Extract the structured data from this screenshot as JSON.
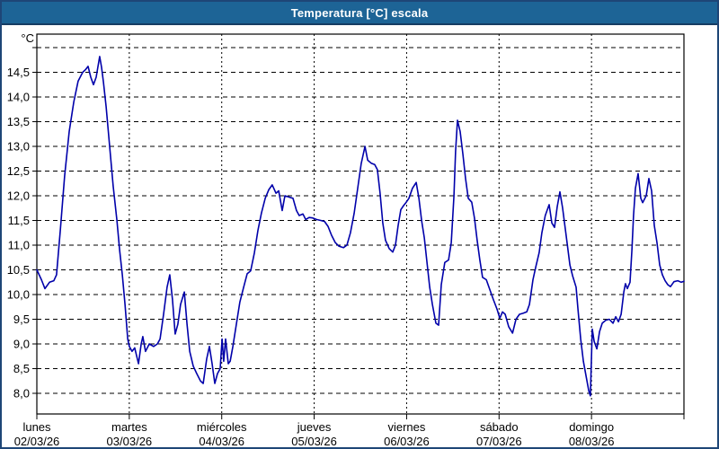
{
  "window": {
    "title": "Temperatura [°C] escala"
  },
  "colors": {
    "titlebar": "#1d6496",
    "frame": "#1e4677",
    "line": "#0000aa",
    "grid": "#000000",
    "plot_background": "#ffffff",
    "label_text": "#000000"
  },
  "chart_data": {
    "type": "line",
    "title": "Temperatura [°C] escala",
    "legend": "none",
    "grid": "dashed",
    "y_axis": {
      "unit_label": "°C",
      "min": 8.0,
      "max": 15.0,
      "step": 0.5,
      "top_gridline_unlabeled": true,
      "tick_labels": [
        "14,5",
        "14,0",
        "13,5",
        "13,0",
        "12,5",
        "12,0",
        "11,5",
        "11,0",
        "10,5",
        "10,0",
        "9,5",
        "9,0",
        "8,5",
        "8,0"
      ]
    },
    "x_axis": {
      "range_days": 7,
      "range_hours": 168,
      "label_position": "day-start",
      "tick_labels": [
        {
          "day": "lunes",
          "date": "02/03/26"
        },
        {
          "day": "martes",
          "date": "03/03/26"
        },
        {
          "day": "miércoles",
          "date": "04/03/26"
        },
        {
          "day": "jueves",
          "date": "05/03/26"
        },
        {
          "day": "viernes",
          "date": "06/03/26"
        },
        {
          "day": "sábado",
          "date": "07/03/26"
        },
        {
          "day": "domingo",
          "date": "08/03/26"
        }
      ]
    },
    "series": [
      {
        "name": "Temperatura",
        "color": "#0000aa",
        "points_hours_vs_degC": [
          [
            0,
            10.5
          ],
          [
            1.2,
            10.3
          ],
          [
            2.1,
            10.12
          ],
          [
            3.3,
            10.25
          ],
          [
            4.4,
            10.28
          ],
          [
            5.1,
            10.4
          ],
          [
            6.1,
            11.3
          ],
          [
            7.2,
            12.4
          ],
          [
            8.4,
            13.3
          ],
          [
            9.6,
            13.9
          ],
          [
            10.7,
            14.32
          ],
          [
            11.9,
            14.5
          ],
          [
            12.6,
            14.55
          ],
          [
            13.3,
            14.62
          ],
          [
            14,
            14.4
          ],
          [
            14.7,
            14.25
          ],
          [
            15.4,
            14.4
          ],
          [
            16.3,
            14.82
          ],
          [
            16.8,
            14.6
          ],
          [
            17.3,
            14.3
          ],
          [
            18,
            13.8
          ],
          [
            18.9,
            13
          ],
          [
            19.8,
            12.2
          ],
          [
            20.8,
            11.5
          ],
          [
            21.5,
            10.9
          ],
          [
            22.2,
            10.4
          ],
          [
            22.9,
            9.8
          ],
          [
            23.6,
            9.1
          ],
          [
            24,
            8.95
          ],
          [
            24.7,
            8.85
          ],
          [
            25.4,
            8.92
          ],
          [
            26.4,
            8.6
          ],
          [
            27.1,
            9
          ],
          [
            27.5,
            9.15
          ],
          [
            28.2,
            8.85
          ],
          [
            29.2,
            9
          ],
          [
            30.3,
            8.95
          ],
          [
            31.3,
            9
          ],
          [
            32,
            9.1
          ],
          [
            32.9,
            9.6
          ],
          [
            33.8,
            10.15
          ],
          [
            34.5,
            10.4
          ],
          [
            35.2,
            9.9
          ],
          [
            35.9,
            9.2
          ],
          [
            36.6,
            9.4
          ],
          [
            37.3,
            9.8
          ],
          [
            38.3,
            10.05
          ],
          [
            39,
            9.4
          ],
          [
            39.7,
            8.85
          ],
          [
            40.6,
            8.55
          ],
          [
            41.5,
            8.4
          ],
          [
            42.5,
            8.25
          ],
          [
            43.2,
            8.2
          ],
          [
            44.1,
            8.7
          ],
          [
            44.8,
            8.95
          ],
          [
            45.5,
            8.6
          ],
          [
            46.2,
            8.2
          ],
          [
            46.9,
            8.4
          ],
          [
            47.6,
            8.5
          ],
          [
            48.1,
            9.1
          ],
          [
            48.5,
            8.65
          ],
          [
            49,
            9.1
          ],
          [
            49.7,
            8.6
          ],
          [
            50.2,
            8.65
          ],
          [
            50.9,
            8.95
          ],
          [
            51.8,
            9.4
          ],
          [
            52.7,
            9.85
          ],
          [
            53.7,
            10.15
          ],
          [
            54.6,
            10.42
          ],
          [
            55.5,
            10.48
          ],
          [
            56.5,
            10.85
          ],
          [
            57.4,
            11.3
          ],
          [
            58.3,
            11.65
          ],
          [
            59.3,
            11.95
          ],
          [
            60.2,
            12.12
          ],
          [
            61.1,
            12.22
          ],
          [
            62.1,
            12.05
          ],
          [
            62.8,
            12.1
          ],
          [
            63.7,
            11.7
          ],
          [
            64.4,
            12
          ],
          [
            65.6,
            11.97
          ],
          [
            66.5,
            11.95
          ],
          [
            67.4,
            11.7
          ],
          [
            68.1,
            11.6
          ],
          [
            69.1,
            11.63
          ],
          [
            69.8,
            11.52
          ],
          [
            70.7,
            11.56
          ],
          [
            71.6,
            11.55
          ],
          [
            72.6,
            11.52
          ],
          [
            73.7,
            11.5
          ],
          [
            74.7,
            11.48
          ],
          [
            75.6,
            11.38
          ],
          [
            76.5,
            11.2
          ],
          [
            77.5,
            11.05
          ],
          [
            78.4,
            10.98
          ],
          [
            79.6,
            10.95
          ],
          [
            80.5,
            11
          ],
          [
            81.4,
            11.25
          ],
          [
            82.4,
            11.65
          ],
          [
            83.3,
            12.15
          ],
          [
            84.2,
            12.65
          ],
          [
            85.2,
            13
          ],
          [
            85.9,
            12.72
          ],
          [
            86.8,
            12.66
          ],
          [
            87.7,
            12.63
          ],
          [
            88.4,
            12.53
          ],
          [
            89.1,
            12.05
          ],
          [
            89.8,
            11.45
          ],
          [
            90.5,
            11.1
          ],
          [
            91.5,
            10.93
          ],
          [
            92.4,
            10.86
          ],
          [
            93.1,
            11
          ],
          [
            93.8,
            11.4
          ],
          [
            94.5,
            11.72
          ],
          [
            95.2,
            11.8
          ],
          [
            95.9,
            11.87
          ],
          [
            96.6,
            11.95
          ],
          [
            97.5,
            12.15
          ],
          [
            98.5,
            12.27
          ],
          [
            99.2,
            11.95
          ],
          [
            99.9,
            11.5
          ],
          [
            100.6,
            11.15
          ],
          [
            101.3,
            10.65
          ],
          [
            102,
            10.15
          ],
          [
            102.7,
            9.8
          ],
          [
            103.6,
            9.42
          ],
          [
            104.3,
            9.38
          ],
          [
            105,
            10.2
          ],
          [
            105.9,
            10.65
          ],
          [
            106.9,
            10.7
          ],
          [
            107.6,
            11.05
          ],
          [
            108.3,
            12
          ],
          [
            108.7,
            12.9
          ],
          [
            109.2,
            13.53
          ],
          [
            109.9,
            13.3
          ],
          [
            110.6,
            12.85
          ],
          [
            111.3,
            12.35
          ],
          [
            112,
            11.95
          ],
          [
            112.9,
            11.87
          ],
          [
            113.6,
            11.55
          ],
          [
            114.3,
            11.1
          ],
          [
            115,
            10.7
          ],
          [
            115.7,
            10.35
          ],
          [
            116.7,
            10.3
          ],
          [
            117.6,
            10.1
          ],
          [
            118.5,
            9.9
          ],
          [
            119.5,
            9.7
          ],
          [
            120.2,
            9.52
          ],
          [
            120.9,
            9.65
          ],
          [
            121.6,
            9.6
          ],
          [
            122.5,
            9.35
          ],
          [
            123.5,
            9.22
          ],
          [
            124.4,
            9.5
          ],
          [
            125.3,
            9.6
          ],
          [
            126.2,
            9.62
          ],
          [
            127.2,
            9.65
          ],
          [
            127.9,
            9.8
          ],
          [
            128.8,
            10.3
          ],
          [
            129.5,
            10.55
          ],
          [
            130.4,
            10.85
          ],
          [
            131.1,
            11.25
          ],
          [
            132,
            11.6
          ],
          [
            133,
            11.82
          ],
          [
            133.7,
            11.45
          ],
          [
            134.4,
            11.36
          ],
          [
            135.1,
            11.78
          ],
          [
            135.8,
            12.08
          ],
          [
            136.5,
            11.75
          ],
          [
            137.4,
            11.2
          ],
          [
            138.4,
            10.6
          ],
          [
            139.1,
            10.38
          ],
          [
            140,
            10.15
          ],
          [
            140.5,
            9.7
          ],
          [
            141.2,
            9.1
          ],
          [
            141.9,
            8.65
          ],
          [
            142.6,
            8.35
          ],
          [
            143.3,
            8.05
          ],
          [
            143.7,
            7.95
          ],
          [
            144.2,
            9.3
          ],
          [
            144.7,
            9.05
          ],
          [
            145.4,
            8.9
          ],
          [
            146.1,
            9.25
          ],
          [
            146.8,
            9.42
          ],
          [
            147.7,
            9.48
          ],
          [
            148.6,
            9.5
          ],
          [
            149.6,
            9.42
          ],
          [
            150.3,
            9.55
          ],
          [
            151,
            9.45
          ],
          [
            151.7,
            9.6
          ],
          [
            152.4,
            10.05
          ],
          [
            152.8,
            10.22
          ],
          [
            153.3,
            10.12
          ],
          [
            154,
            10.25
          ],
          [
            154.5,
            10.9
          ],
          [
            154.9,
            11.6
          ],
          [
            155.4,
            12.15
          ],
          [
            156.1,
            12.45
          ],
          [
            156.8,
            11.95
          ],
          [
            157.3,
            11.86
          ],
          [
            158.2,
            12
          ],
          [
            158.9,
            12.35
          ],
          [
            159.6,
            12.1
          ],
          [
            160.3,
            11.4
          ],
          [
            161,
            11.05
          ],
          [
            161.7,
            10.6
          ],
          [
            162.4,
            10.4
          ],
          [
            163.1,
            10.28
          ],
          [
            163.8,
            10.2
          ],
          [
            164.5,
            10.16
          ],
          [
            165.4,
            10.26
          ],
          [
            166.4,
            10.28
          ],
          [
            167.3,
            10.25
          ],
          [
            168,
            10.27
          ]
        ]
      }
    ]
  }
}
